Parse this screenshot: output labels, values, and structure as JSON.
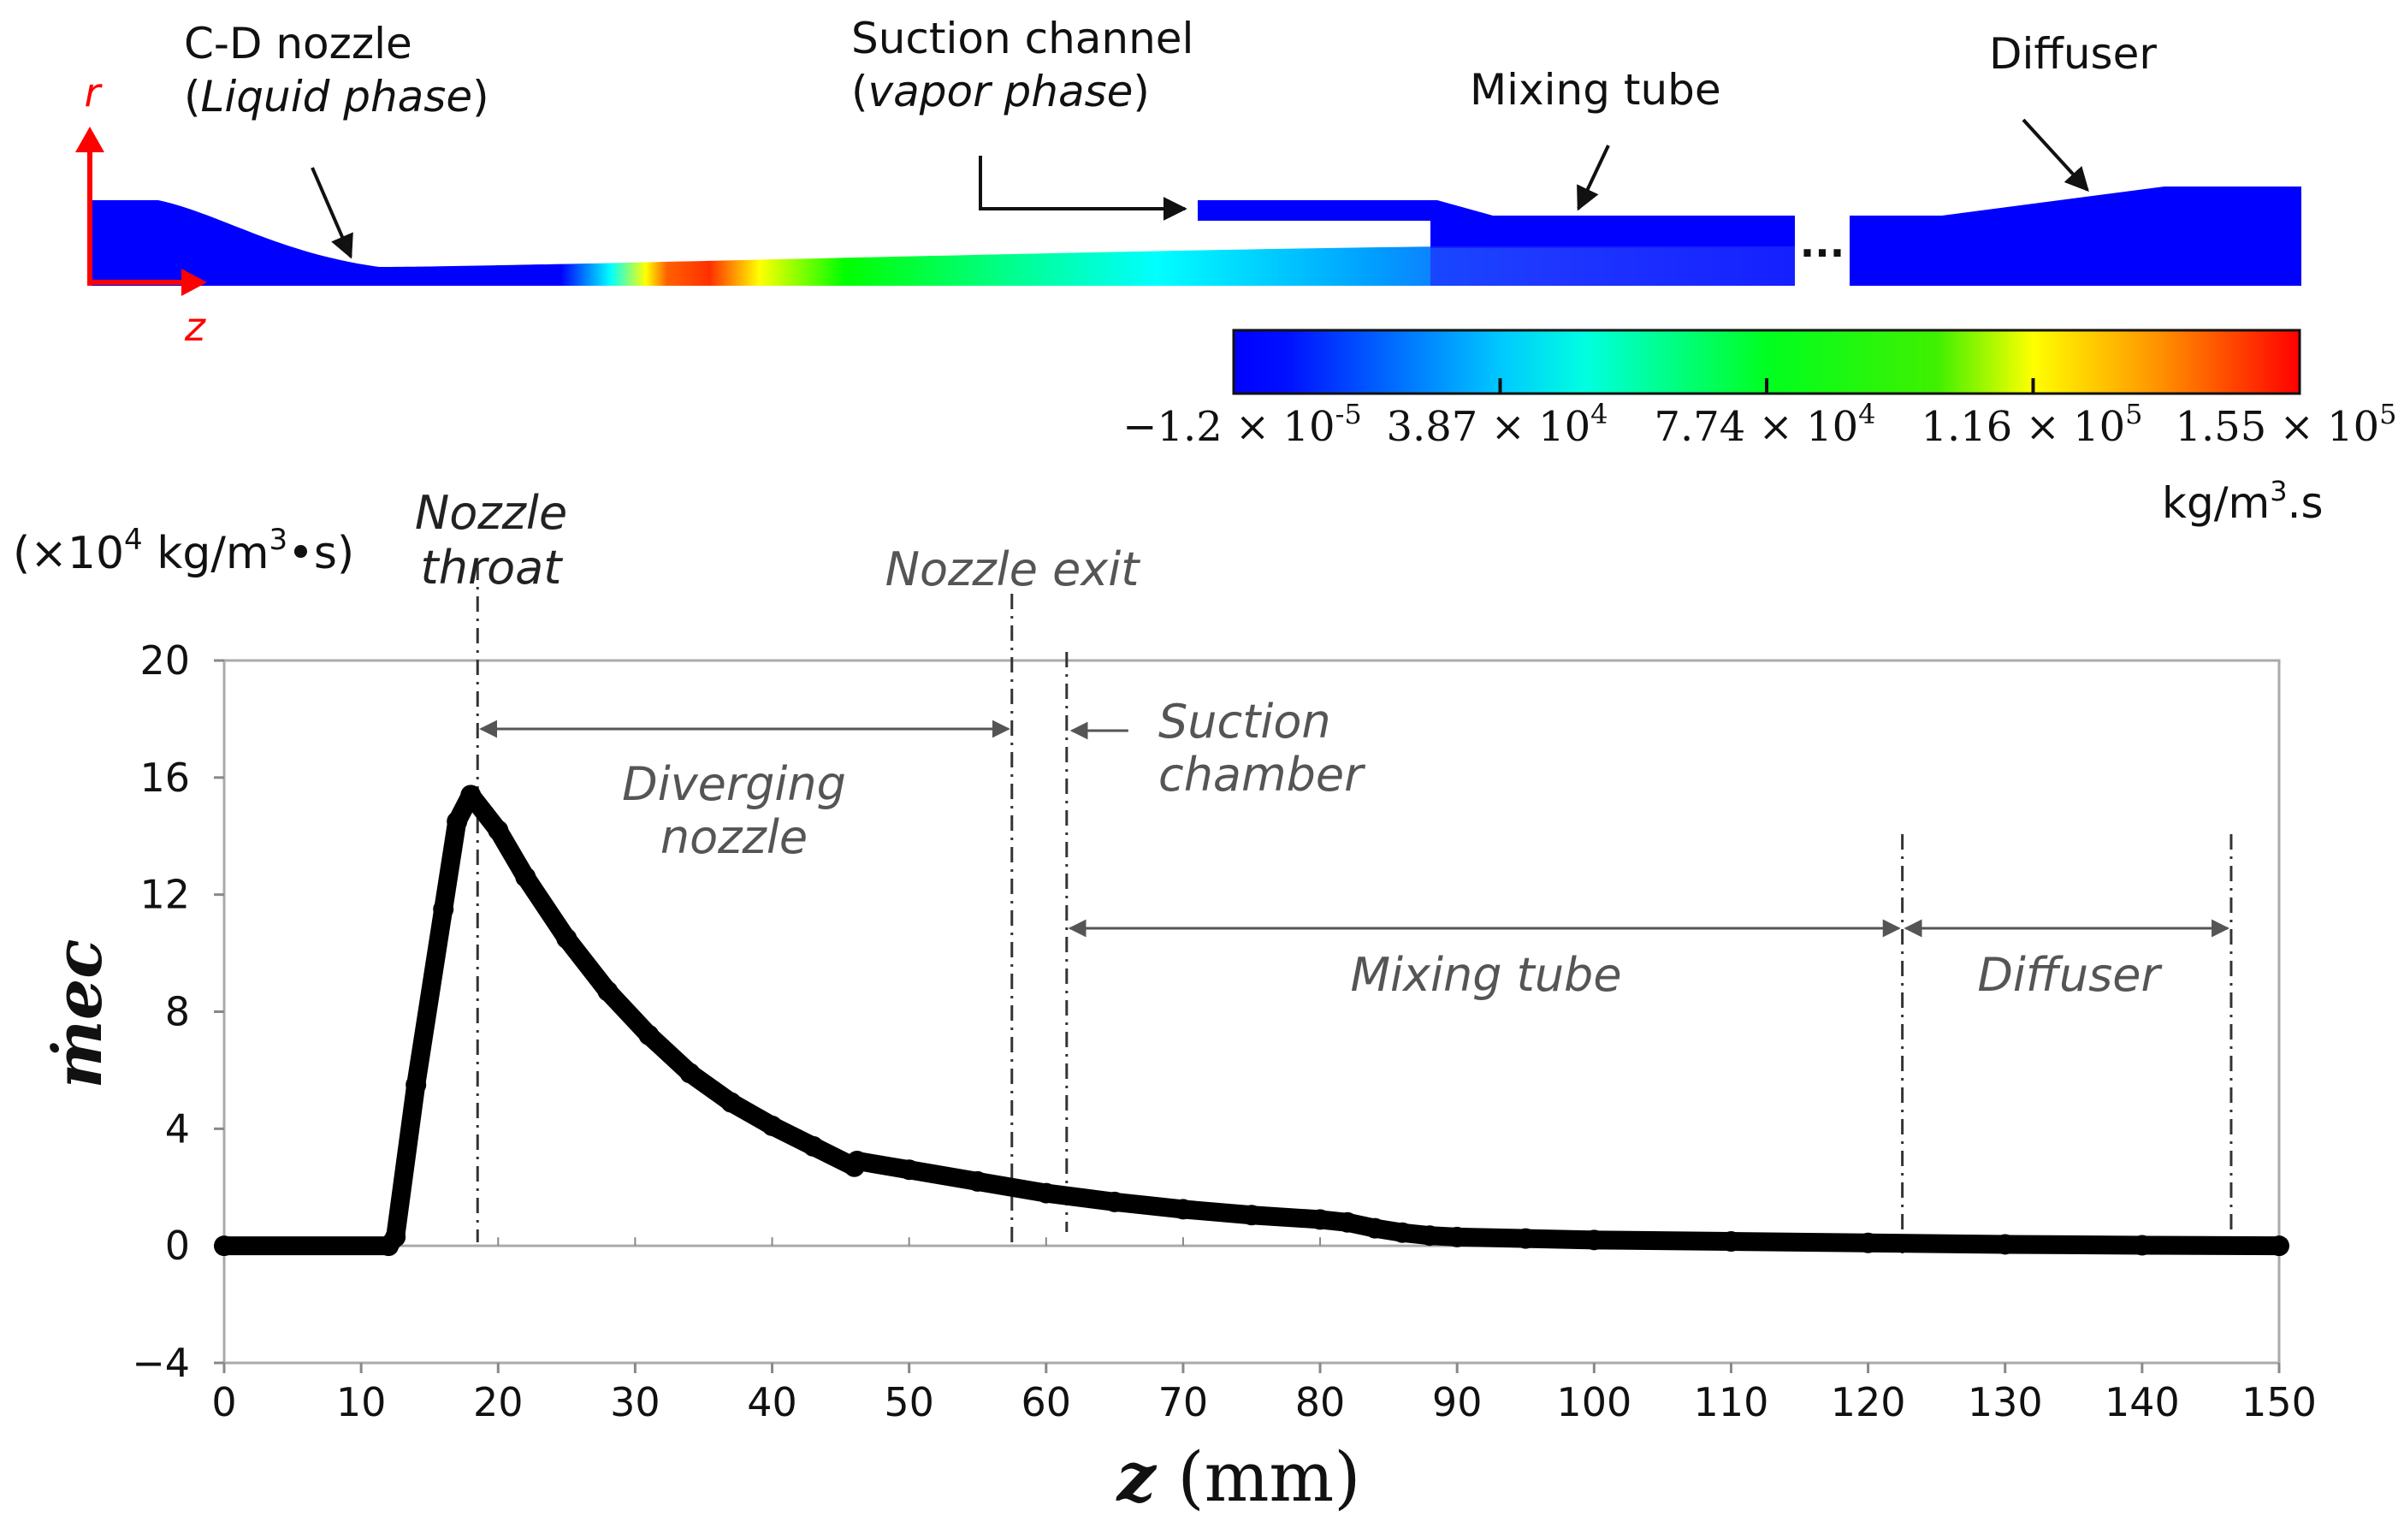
{
  "geometry_figure": {
    "axis_r": "r",
    "axis_z": "z",
    "label_cd_nozzle": "C-D nozzle",
    "label_liquid_open": "(",
    "label_liquid": "Liquid phase",
    "label_liquid_close": ")",
    "label_suction_channel": "Suction channel",
    "label_vapor_open": "(",
    "label_vapor": "vapor phase",
    "label_vapor_close": ")",
    "label_mixing_tube": "Mixing tube",
    "label_diffuser": "Diffuser",
    "ellipsis": "...",
    "colorbar": {
      "colors": [
        "#0000ff",
        "#00ffff",
        "#00ff00",
        "#ffff00",
        "#ff0000"
      ],
      "tick_labels": [
        {
          "mantissa": "−1.2 × 10",
          "exp": "-5"
        },
        {
          "mantissa": "3.87 × 10",
          "exp": "4"
        },
        {
          "mantissa": "7.74 × 10",
          "exp": "4"
        },
        {
          "mantissa": "1.16 × 10",
          "exp": "5"
        },
        {
          "mantissa": "1.55 × 10",
          "exp": "5"
        }
      ],
      "unit_a": "kg/m",
      "unit_exp": "3",
      "unit_b": ".s"
    }
  },
  "chart_data": {
    "type": "line",
    "x": [
      0,
      12,
      12.5,
      14,
      16,
      17,
      18,
      20,
      22,
      25,
      28,
      31,
      34,
      37,
      40,
      43,
      46,
      46.2,
      50,
      55,
      60,
      65,
      70,
      75,
      80,
      82,
      84,
      86,
      88,
      90,
      95,
      100,
      110,
      120,
      130,
      140,
      150
    ],
    "series": [
      {
        "name": "m_ec",
        "values": [
          0,
          0,
          0.3,
          5.5,
          11.5,
          14.5,
          15.4,
          14.2,
          12.6,
          10.5,
          8.7,
          7.2,
          5.9,
          4.9,
          4.1,
          3.4,
          2.7,
          2.9,
          2.6,
          2.2,
          1.8,
          1.5,
          1.25,
          1.05,
          0.9,
          0.8,
          0.6,
          0.45,
          0.35,
          0.3,
          0.25,
          0.2,
          0.15,
          0.1,
          0.05,
          0.02,
          0
        ]
      }
    ],
    "ylim": [
      -4,
      20
    ],
    "xlim": [
      0,
      150
    ],
    "y_ticks": [
      "20",
      "16",
      "12",
      "8",
      "4",
      "0",
      "−4"
    ],
    "x_ticks": [
      "0",
      "10",
      "20",
      "30",
      "40",
      "50",
      "60",
      "70",
      "80",
      "90",
      "100",
      "110",
      "120",
      "130",
      "140",
      "150"
    ],
    "xlabel_var": "z",
    "xlabel_unit": " (mm)",
    "ylabel": "ṁec",
    "yunit_a": "(×10",
    "yunit_exp": "4",
    "yunit_b": " kg/m",
    "yunit_exp2": "3",
    "yunit_c": "•s)",
    "markers": [
      {
        "z": 18.5,
        "label1": "Nozzle",
        "label2": "throat"
      },
      {
        "z": 57.5,
        "label1": "Nozzle exit"
      },
      {
        "z": 61.5,
        "label1": "Suction",
        "label2": "chamber"
      },
      {
        "z": 122.5,
        "label1": ""
      },
      {
        "z": 146.5,
        "label1": ""
      }
    ],
    "regions": [
      {
        "label1": "Diverging",
        "label2": "nozzle"
      },
      {
        "label1": "Mixing tube"
      },
      {
        "label1": "Diffuser"
      }
    ]
  }
}
